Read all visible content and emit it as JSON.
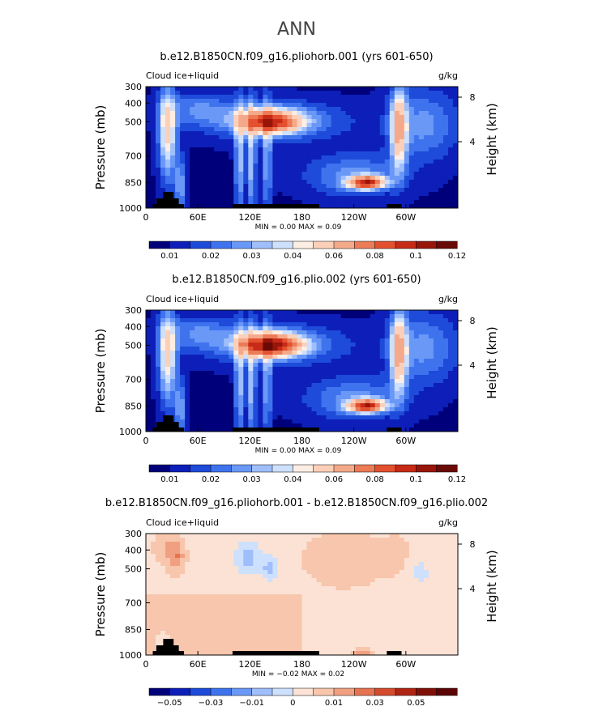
{
  "figure_title": "ANN",
  "colors": {
    "land": "#000000",
    "axis": "#000000",
    "abs_scale": [
      "#00007a",
      "#0d1fb8",
      "#1e4bd9",
      "#3f73ee",
      "#6a98f7",
      "#9fbefb",
      "#cde0fd",
      "#fdeee4",
      "#fcd0b8",
      "#f4a98a",
      "#ec7b58",
      "#e4512f",
      "#c72a16",
      "#98150a",
      "#6a0a06"
    ],
    "diff_scale": [
      "#00007a",
      "#0d1fb8",
      "#1e4bd9",
      "#3f73ee",
      "#6a98f7",
      "#9fbefb",
      "#cde0fd",
      "#fbe2d4",
      "#f7c6ac",
      "#f0a080",
      "#e57352",
      "#d44a2c",
      "#b02414",
      "#7f0f07",
      "#5a0404"
    ]
  },
  "chart_data": [
    {
      "type": "heatmap",
      "title": "b.e12.B1850CN.f09_g16.pliohorb.001 (yrs 601-650)",
      "variable_label": "Cloud ice+liquid",
      "units_label": "g/kg",
      "ylabel": "Pressure (mb)",
      "ylabel_right": "Height (km)",
      "x_ticks": [
        "0",
        "60E",
        "120E",
        "180",
        "120W",
        "60W"
      ],
      "y_ticks": [
        "300",
        "400",
        "500",
        "700",
        "850",
        "1000"
      ],
      "y_ticks_right": [
        "8",
        "4"
      ],
      "stats_text": "MIN =    0.00   MAX =    0.09",
      "colorbar_labels": [
        "0.01",
        "0.02",
        "0.03",
        "0.04",
        "0.06",
        "0.08",
        "0.1",
        "0.12"
      ],
      "colorbar_levels": [
        0.005,
        0.01,
        0.015,
        0.02,
        0.025,
        0.03,
        0.035,
        0.04,
        0.05,
        0.06,
        0.07,
        0.08,
        0.09,
        0.1,
        0.11,
        0.12
      ],
      "min": 0.0,
      "max": 0.09,
      "features": [
        {
          "lon": 25,
          "p": 500,
          "value": 0.045
        },
        {
          "lon": 145,
          "p": 500,
          "value": 0.07
        },
        {
          "lon": 255,
          "p": 850,
          "value": 0.08
        },
        {
          "lon": 292,
          "p": 500,
          "value": 0.05
        }
      ]
    },
    {
      "type": "heatmap",
      "title": "b.e12.B1850CN.f09_g16.plio.002 (yrs 601-650)",
      "variable_label": "Cloud ice+liquid",
      "units_label": "g/kg",
      "ylabel": "Pressure (mb)",
      "ylabel_right": "Height (km)",
      "x_ticks": [
        "0",
        "60E",
        "120E",
        "180",
        "120W",
        "60W"
      ],
      "y_ticks": [
        "300",
        "400",
        "500",
        "700",
        "850",
        "1000"
      ],
      "y_ticks_right": [
        "8",
        "4"
      ],
      "stats_text": "MIN =    0.00   MAX =    0.09",
      "colorbar_labels": [
        "0.01",
        "0.02",
        "0.03",
        "0.04",
        "0.06",
        "0.08",
        "0.1",
        "0.12"
      ],
      "colorbar_levels": [
        0.005,
        0.01,
        0.015,
        0.02,
        0.025,
        0.03,
        0.035,
        0.04,
        0.05,
        0.06,
        0.07,
        0.08,
        0.09,
        0.1,
        0.11,
        0.12
      ],
      "min": 0.0,
      "max": 0.09,
      "features": [
        {
          "lon": 25,
          "p": 500,
          "value": 0.05
        },
        {
          "lon": 150,
          "p": 500,
          "value": 0.08
        },
        {
          "lon": 255,
          "p": 850,
          "value": 0.08
        },
        {
          "lon": 292,
          "p": 500,
          "value": 0.05
        }
      ]
    },
    {
      "type": "heatmap",
      "title": "b.e12.B1850CN.f09_g16.pliohorb.001 - b.e12.B1850CN.f09_g16.plio.002",
      "variable_label": "Cloud ice+liquid",
      "units_label": "g/kg",
      "ylabel": "Pressure (mb)",
      "ylabel_right": "Height (km)",
      "x_ticks": [
        "0",
        "60E",
        "120E",
        "180",
        "120W",
        "60W"
      ],
      "y_ticks": [
        "300",
        "400",
        "500",
        "700",
        "850",
        "1000"
      ],
      "y_ticks_right": [
        "8",
        "4"
      ],
      "stats_text": "MIN =   −0.02   MAX =    0.02",
      "colorbar_labels": [
        "−0.05",
        "−0.03",
        "−0.01",
        "0",
        "0.01",
        "0.03",
        "0.05"
      ],
      "colorbar_levels": [
        -0.06,
        -0.05,
        -0.04,
        -0.03,
        -0.02,
        -0.01,
        -0.005,
        0,
        0.005,
        0.01,
        0.02,
        0.03,
        0.04,
        0.05,
        0.06
      ],
      "min": -0.02,
      "max": 0.02,
      "features": [
        {
          "lon": 35,
          "p": 420,
          "value": 0.01
        },
        {
          "lon": 120,
          "p": 450,
          "value": -0.01
        },
        {
          "lon": 145,
          "p": 500,
          "value": -0.015
        },
        {
          "lon": 250,
          "p": 990,
          "value": 0.01
        }
      ]
    }
  ]
}
